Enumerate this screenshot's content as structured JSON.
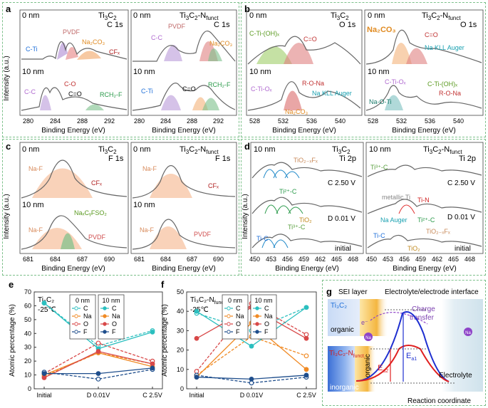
{
  "panels": {
    "a": {
      "letter": "a",
      "left_title_top": "0 nm",
      "left_sample": "Ti",
      "left_sample_sub": "3",
      "left_sample_tail": "C",
      "left_sample_sub2": "2",
      "left_core": "C 1s",
      "right_title_top": "0 nm",
      "right_sample": "Ti",
      "right_sub": "3",
      "right_mid": "C",
      "right_sub2": "2",
      "right_tail": "-N",
      "right_sub3": "funct",
      "right_core": "C 1s",
      "depth2": "10 nm",
      "ylabel": "Intensity (a.u.)",
      "xlabel": "Binding Energy (eV)",
      "xticks": [
        "280",
        "284",
        "288",
        "292"
      ],
      "labels_l0": [
        "C-Ti",
        "PVDF",
        "Na₂CO₃",
        "CFₓ"
      ],
      "labels_l10": [
        "C-C",
        "C-O",
        "C=O",
        "RCH₂-F"
      ],
      "labels_r0": [
        "C-C",
        "PVDF",
        "Na₂CO₃"
      ],
      "labels_r10": [
        "C-Ti",
        "C=O",
        "RCH₂-F"
      ]
    },
    "b": {
      "letter": "b",
      "left_title_top": "0 nm",
      "left_core": "O 1s",
      "right_core": "O 1s",
      "depth2": "10 nm",
      "xlabel": "Binding Energy (eV)",
      "xticks": [
        "528",
        "532",
        "536",
        "540"
      ],
      "labels_l0": [
        "C-Ti-(OH)ₓ",
        "C=O"
      ],
      "labels_l10": [
        "R-O-Na",
        "C-Ti-Oₓ",
        "Na KLL Auger",
        "Na₂CO₃"
      ],
      "labels_r0": [
        "Na₂CO₃",
        "C=O",
        "Na KLL Auger"
      ],
      "labels_r10": [
        "C-Ti-Oₓ",
        "Na-O-Ti",
        "C-Ti-(OH)ₓ",
        "R-O-Na"
      ]
    },
    "c": {
      "letter": "c",
      "core": "F 1s",
      "ylabel": "Intensity (a.u.)",
      "xlabel": "Binding Energy (eV)",
      "xticks": [
        "681",
        "684",
        "687",
        "690"
      ],
      "labels_l0": [
        "Na-F",
        "CFₓ"
      ],
      "labels_l10": [
        "Na-F",
        "NaₓCᵧFSO₂",
        "PVDF"
      ],
      "labels_r0": [
        "Na-F",
        "CFₓ"
      ],
      "labels_r10": [
        "Na-F",
        "PVDF"
      ]
    },
    "d": {
      "letter": "d",
      "depth": "10 nm",
      "core": "Ti 2p",
      "ylabel": "Intensity (a.u.)",
      "xlabel": "Binding Energy (eV)",
      "xticks": [
        "450",
        "453",
        "456",
        "459",
        "462",
        "465",
        "468"
      ],
      "states": [
        "C 2.50 V",
        "D 0.01 V",
        "initial"
      ],
      "labels_l": [
        "TiO₂₋ₓFₓ",
        "Ti²⁺-C",
        "TiO₂",
        "Ti-C",
        "Ti³⁺-C"
      ],
      "labels_r": [
        "Ti³⁺-C",
        "metallic Ti",
        "Ti-N",
        "Na  Auger",
        "Ti²⁺-C",
        "Ti-C",
        "TiO₂₋ₓFₓ",
        "TiO₂"
      ]
    },
    "e": {
      "letter": "e",
      "sample_line": "Ti₃C₂",
      "temp": "-25℃"
    },
    "f": {
      "letter": "f",
      "sample_line": "Ti₃C₂-N",
      "sample_sub": "funct",
      "temp": "-25℃"
    },
    "g": {
      "letter": "g",
      "sei": "SEI layer",
      "interface": "Electrolyte/electrode interface",
      "top_sample": "Ti₃C₂",
      "bottom_sample": "Ti₃C₂-N",
      "bottom_sub": "funct.",
      "organic": "organic",
      "organic_v": "organic",
      "inorganic": "inorganic",
      "e_label": "e⁻",
      "na_label": "Na",
      "charge": "Charge",
      "transfer": "transfer",
      "ea1": "E",
      "ea1_sub": "a1",
      "ea2": "E",
      "ea2_sub": "a2",
      "electrolyte": "Electrolyte",
      "xlabel": "Reaction coordinate"
    }
  },
  "chart_data": [
    {
      "type": "line",
      "title": "Ti₃C₂ -25℃",
      "categories": [
        "Initial",
        "D 0.01V",
        "C 2.5V"
      ],
      "ylabel": "Atomic percentage (%)",
      "ylim": [
        0,
        70
      ],
      "yticks": [
        0,
        10,
        20,
        30,
        40,
        50,
        60,
        70
      ],
      "legend": [
        {
          "title": "0 nm",
          "style": "dashed open"
        },
        {
          "title": "10 nm",
          "style": "solid filled"
        }
      ],
      "series": [
        {
          "name": "C",
          "depth": "0 nm",
          "color": "#2bbfbf",
          "values": [
            62,
            31,
            42
          ]
        },
        {
          "name": "Na",
          "depth": "0 nm",
          "color": "#f08a24",
          "values": [
            9,
            26,
            18
          ]
        },
        {
          "name": "O",
          "depth": "0 nm",
          "color": "#d84848",
          "values": [
            11,
            33,
            20
          ]
        },
        {
          "name": "F",
          "depth": "0 nm",
          "color": "#1f4e8c",
          "values": [
            12,
            7,
            14
          ]
        },
        {
          "name": "C",
          "depth": "10 nm",
          "color": "#2bbfbf",
          "values": [
            62,
            29,
            41
          ]
        },
        {
          "name": "Na",
          "depth": "10 nm",
          "color": "#f08a24",
          "values": [
            10,
            26,
            16
          ]
        },
        {
          "name": "O",
          "depth": "10 nm",
          "color": "#d84848",
          "values": [
            8,
            27,
            18
          ]
        },
        {
          "name": "F",
          "depth": "10 nm",
          "color": "#1f4e8c",
          "values": [
            11,
            11,
            15
          ]
        }
      ]
    },
    {
      "type": "line",
      "title": "Ti₃C₂-N funct -25℃",
      "categories": [
        "Initial",
        "D 0.01V",
        "C 2.5V"
      ],
      "ylabel": "Atomic percentage (%)",
      "ylim": [
        0,
        50
      ],
      "yticks": [
        0,
        10,
        20,
        30,
        40,
        50
      ],
      "legend": [
        {
          "title": "0 nm",
          "style": "dashed open"
        },
        {
          "title": "10 nm",
          "style": "solid filled"
        }
      ],
      "series": [
        {
          "name": "C",
          "depth": "0 nm",
          "color": "#2bbfbf",
          "values": [
            39,
            30,
            42
          ]
        },
        {
          "name": "Na",
          "depth": "0 nm",
          "color": "#f08a24",
          "values": [
            7,
            27,
            17
          ]
        },
        {
          "name": "O",
          "depth": "0 nm",
          "color": "#d84848",
          "values": [
            9,
            44,
            28
          ]
        },
        {
          "name": "F",
          "depth": "0 nm",
          "color": "#1f4e8c",
          "values": [
            7,
            3,
            6
          ]
        },
        {
          "name": "C",
          "depth": "10 nm",
          "color": "#2bbfbf",
          "values": [
            40,
            22,
            42
          ]
        },
        {
          "name": "Na",
          "depth": "10 nm",
          "color": "#f08a24",
          "values": [
            6,
            34,
            10
          ]
        },
        {
          "name": "O",
          "depth": "10 nm",
          "color": "#d84848",
          "values": [
            26,
            42,
            26
          ]
        },
        {
          "name": "F",
          "depth": "10 nm",
          "color": "#1f4e8c",
          "values": [
            6,
            5,
            7
          ]
        }
      ]
    }
  ]
}
